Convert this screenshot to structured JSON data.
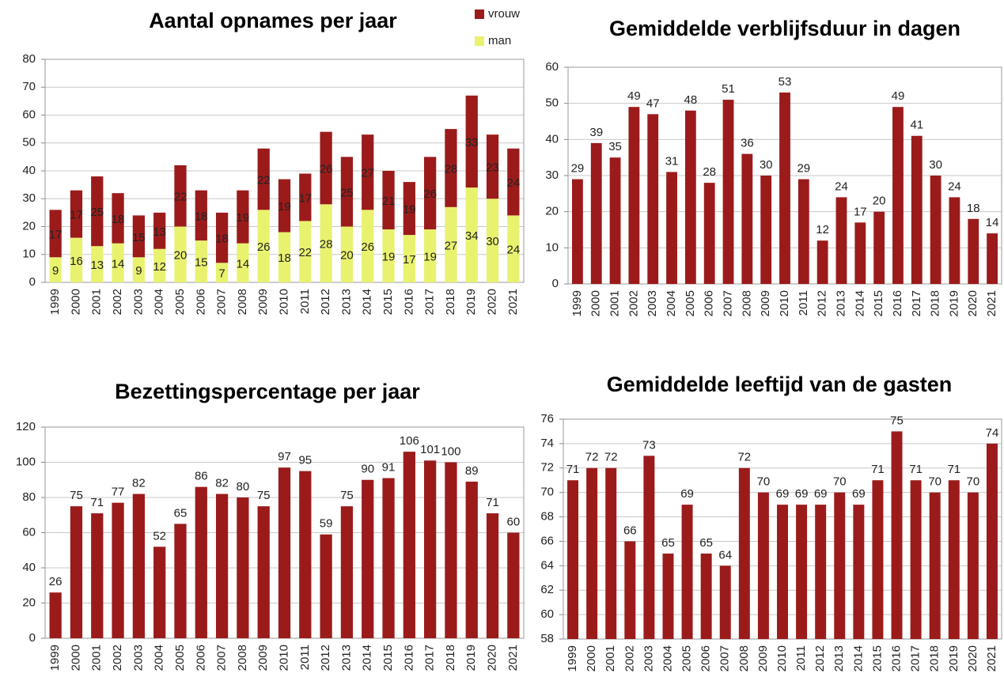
{
  "chart_data": [
    {
      "type": "bar",
      "title": "Aantal opnames per jaar",
      "stacked": true,
      "legend": "top-right",
      "categories": [
        "1999",
        "2000",
        "2001",
        "2002",
        "2003",
        "2004",
        "2005",
        "2006",
        "2007",
        "2008",
        "2009",
        "2010",
        "2011",
        "2012",
        "2013",
        "2014",
        "2015",
        "2016",
        "2017",
        "2018",
        "2019",
        "2020",
        "2021"
      ],
      "series": [
        {
          "name": "man",
          "color": "#e8f26f",
          "values": [
            9,
            16,
            13,
            14,
            9,
            12,
            20,
            15,
            7,
            14,
            26,
            18,
            22,
            28,
            20,
            26,
            19,
            17,
            19,
            27,
            34,
            30,
            24
          ]
        },
        {
          "name": "vrouw",
          "color": "#9b1b1b",
          "values": [
            17,
            17,
            25,
            18,
            15,
            13,
            22,
            18,
            18,
            19,
            22,
            19,
            17,
            26,
            25,
            27,
            21,
            19,
            26,
            28,
            33,
            23,
            24
          ]
        }
      ],
      "ylim": [
        0,
        80
      ],
      "yticks": [
        0,
        10,
        20,
        30,
        40,
        50,
        60,
        70,
        80
      ],
      "grid": true
    },
    {
      "type": "bar",
      "title": "Gemiddelde verblijfsduur in dagen",
      "color": "#9b1b1b",
      "categories": [
        "1999",
        "2000",
        "2001",
        "2002",
        "2003",
        "2004",
        "2005",
        "2006",
        "2007",
        "2008",
        "2009",
        "2010",
        "2011",
        "2012",
        "2013",
        "2014",
        "2015",
        "2016",
        "2017",
        "2018",
        "2019",
        "2020",
        "2021"
      ],
      "values": [
        29,
        39,
        35,
        49,
        47,
        31,
        48,
        28,
        51,
        36,
        30,
        53,
        29,
        12,
        24,
        17,
        20,
        49,
        41,
        30,
        24,
        18,
        14
      ],
      "ylim": [
        0,
        60
      ],
      "yticks": [
        0,
        10,
        20,
        30,
        40,
        50,
        60
      ],
      "grid": true
    },
    {
      "type": "bar",
      "title": "Bezettingspercentage per jaar",
      "color": "#9b1b1b",
      "categories": [
        "1999",
        "2000",
        "2001",
        "2002",
        "2003",
        "2004",
        "2005",
        "2006",
        "2007",
        "2008",
        "2009",
        "2010",
        "2011",
        "2012",
        "2013",
        "2014",
        "2015",
        "2016",
        "2017",
        "2018",
        "2019",
        "2020",
        "2021"
      ],
      "values": [
        26,
        75,
        71,
        77,
        82,
        52,
        65,
        86,
        82,
        80,
        75,
        97,
        95,
        59,
        75,
        90,
        91,
        106,
        101,
        100,
        89,
        71,
        60
      ],
      "ylim": [
        0,
        120
      ],
      "yticks": [
        0,
        20,
        40,
        60,
        80,
        100,
        120
      ],
      "grid": true
    },
    {
      "type": "bar",
      "title": "Gemiddelde leeftijd van de gasten",
      "color": "#9b1b1b",
      "categories": [
        "1999",
        "2000",
        "2001",
        "2002",
        "2003",
        "2004",
        "2005",
        "2006",
        "2007",
        "2008",
        "2009",
        "2010",
        "2011",
        "2012",
        "2013",
        "2014",
        "2015",
        "2016",
        "2017",
        "2018",
        "2019",
        "2020",
        "2021"
      ],
      "values": [
        71,
        72,
        72,
        66,
        73,
        65,
        69,
        65,
        64,
        72,
        70,
        69,
        69,
        69,
        70,
        69,
        71,
        75,
        71,
        70,
        71,
        70,
        74
      ],
      "ylim": [
        58,
        76
      ],
      "yticks": [
        58,
        60,
        62,
        64,
        66,
        68,
        70,
        72,
        74,
        76
      ],
      "grid": true
    }
  ]
}
